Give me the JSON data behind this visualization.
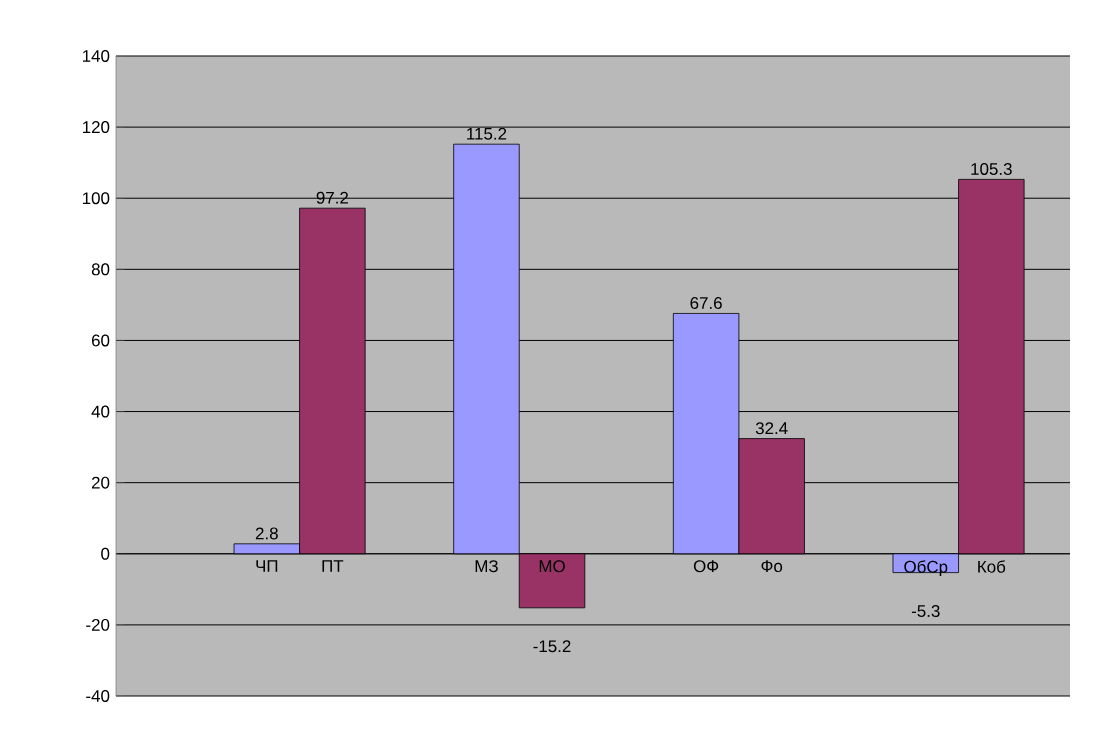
{
  "chart_data": {
    "type": "bar",
    "categories": [
      "ЧП",
      "ПТ",
      "МЗ",
      "МО",
      "ОФ",
      "Фо",
      "ОбСр",
      "Коб"
    ],
    "values": [
      2.8,
      97.2,
      115.2,
      -15.2,
      67.6,
      32.4,
      -5.3,
      105.3
    ],
    "colors": [
      "#9999ff",
      "#993366",
      "#9999ff",
      "#993366",
      "#9999ff",
      "#993366",
      "#9999ff",
      "#993366"
    ],
    "ylim": [
      -40,
      140
    ],
    "yticks": [
      -40,
      -20,
      0,
      20,
      40,
      60,
      80,
      100,
      120,
      140
    ],
    "grid": true,
    "data_labels": true
  }
}
